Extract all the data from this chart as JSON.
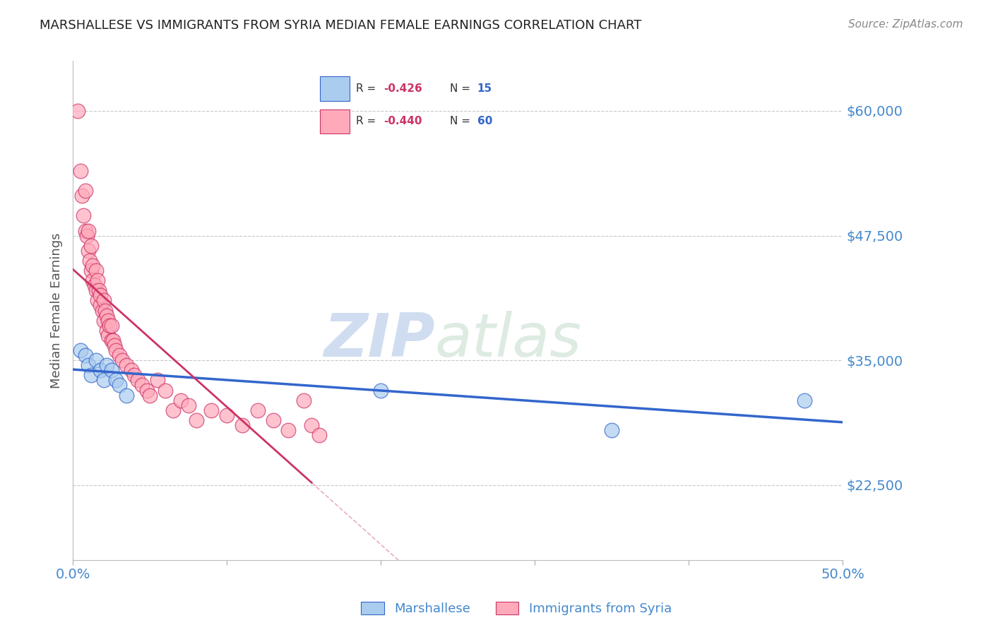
{
  "title": "MARSHALLESE VS IMMIGRANTS FROM SYRIA MEDIAN FEMALE EARNINGS CORRELATION CHART",
  "source": "Source: ZipAtlas.com",
  "ylabel": "Median Female Earnings",
  "xlim": [
    0.0,
    0.5
  ],
  "ylim": [
    15000,
    65000
  ],
  "yticks": [
    22500,
    35000,
    47500,
    60000
  ],
  "ytick_labels": [
    "$22,500",
    "$35,000",
    "$47,500",
    "$60,000"
  ],
  "xticks": [
    0.0,
    0.1,
    0.2,
    0.3,
    0.4,
    0.5
  ],
  "xtick_labels": [
    "0.0%",
    "",
    "",
    "",
    "",
    "50.0%"
  ],
  "background_color": "#ffffff",
  "grid_color": "#c8c8c8",
  "blue_color": "#aaccee",
  "pink_color": "#ffaabb",
  "blue_line_color": "#3366cc",
  "pink_line_color": "#cc3366",
  "legend_R_blue": "-0.426",
  "legend_N_blue": "15",
  "legend_R_pink": "-0.440",
  "legend_N_pink": "60",
  "legend_label_blue": "Marshallese",
  "legend_label_pink": "Immigrants from Syria",
  "blue_scatter_x": [
    0.005,
    0.008,
    0.01,
    0.012,
    0.015,
    0.018,
    0.02,
    0.022,
    0.025,
    0.028,
    0.03,
    0.035,
    0.2,
    0.35,
    0.475
  ],
  "blue_scatter_y": [
    36000,
    35500,
    34500,
    33500,
    35000,
    34000,
    33000,
    34500,
    34000,
    33000,
    32500,
    31500,
    32000,
    28000,
    31000
  ],
  "pink_scatter_x": [
    0.003,
    0.005,
    0.006,
    0.007,
    0.008,
    0.008,
    0.009,
    0.01,
    0.01,
    0.011,
    0.012,
    0.012,
    0.013,
    0.013,
    0.014,
    0.015,
    0.015,
    0.016,
    0.016,
    0.017,
    0.018,
    0.018,
    0.019,
    0.02,
    0.02,
    0.021,
    0.022,
    0.022,
    0.023,
    0.023,
    0.024,
    0.025,
    0.025,
    0.026,
    0.027,
    0.028,
    0.03,
    0.032,
    0.035,
    0.038,
    0.04,
    0.042,
    0.045,
    0.048,
    0.05,
    0.055,
    0.06,
    0.065,
    0.07,
    0.075,
    0.08,
    0.09,
    0.1,
    0.11,
    0.12,
    0.13,
    0.14,
    0.15,
    0.155,
    0.16
  ],
  "pink_scatter_y": [
    60000,
    54000,
    51500,
    49500,
    52000,
    48000,
    47500,
    46000,
    48000,
    45000,
    46500,
    44000,
    44500,
    43000,
    42500,
    44000,
    42000,
    41000,
    43000,
    42000,
    40500,
    41500,
    40000,
    39000,
    41000,
    40000,
    39500,
    38000,
    37500,
    39000,
    38500,
    37000,
    38500,
    37000,
    36500,
    36000,
    35500,
    35000,
    34500,
    34000,
    33500,
    33000,
    32500,
    32000,
    31500,
    33000,
    32000,
    30000,
    31000,
    30500,
    29000,
    30000,
    29500,
    28500,
    30000,
    29000,
    28000,
    31000,
    28500,
    27500
  ]
}
